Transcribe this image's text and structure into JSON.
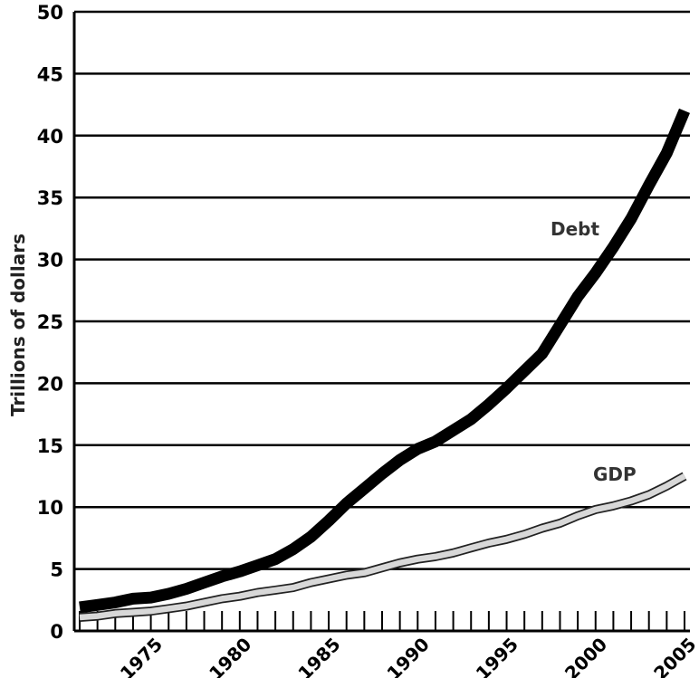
{
  "chart_data": {
    "type": "line",
    "title": "",
    "xlabel": "",
    "ylabel": "Trillions of dollars",
    "ylim": [
      0,
      50
    ],
    "xlim": [
      1971,
      2005
    ],
    "yticks": [
      0,
      5,
      10,
      15,
      20,
      25,
      30,
      35,
      40,
      45,
      50
    ],
    "xticks": [
      1975,
      1980,
      1985,
      1990,
      1995,
      2000,
      2005
    ],
    "grid": true,
    "legend": "inline labels",
    "series": [
      {
        "name": "Debt",
        "color": "#000000",
        "x": [
          1971,
          1972,
          1973,
          1974,
          1975,
          1976,
          1977,
          1978,
          1979,
          1980,
          1981,
          1982,
          1983,
          1984,
          1985,
          1986,
          1987,
          1988,
          1989,
          1990,
          1991,
          1992,
          1993,
          1994,
          1995,
          1996,
          1997,
          1998,
          1999,
          2000,
          2001,
          2002,
          2003,
          2004,
          2005
        ],
        "values": [
          1.9,
          2.1,
          2.3,
          2.6,
          2.7,
          3.0,
          3.4,
          3.9,
          4.4,
          4.8,
          5.3,
          5.8,
          6.6,
          7.6,
          8.9,
          10.3,
          11.5,
          12.7,
          13.8,
          14.7,
          15.3,
          16.2,
          17.1,
          18.3,
          19.6,
          21.0,
          22.4,
          24.7,
          27.0,
          28.9,
          31.0,
          33.3,
          36.0,
          38.6,
          42.0
        ]
      },
      {
        "name": "GDP",
        "color": "#d8d8d8",
        "x": [
          1971,
          1972,
          1973,
          1974,
          1975,
          1976,
          1977,
          1978,
          1979,
          1980,
          1981,
          1982,
          1983,
          1984,
          1985,
          1986,
          1987,
          1988,
          1989,
          1990,
          1991,
          1992,
          1993,
          1994,
          1995,
          1996,
          1997,
          1998,
          1999,
          2000,
          2001,
          2002,
          2003,
          2004,
          2005
        ],
        "values": [
          1.1,
          1.2,
          1.4,
          1.5,
          1.6,
          1.8,
          2.0,
          2.3,
          2.6,
          2.8,
          3.1,
          3.3,
          3.5,
          3.9,
          4.2,
          4.5,
          4.7,
          5.1,
          5.5,
          5.8,
          6.0,
          6.3,
          6.7,
          7.1,
          7.4,
          7.8,
          8.3,
          8.7,
          9.3,
          9.8,
          10.1,
          10.5,
          11.0,
          11.7,
          12.5
        ]
      }
    ]
  }
}
